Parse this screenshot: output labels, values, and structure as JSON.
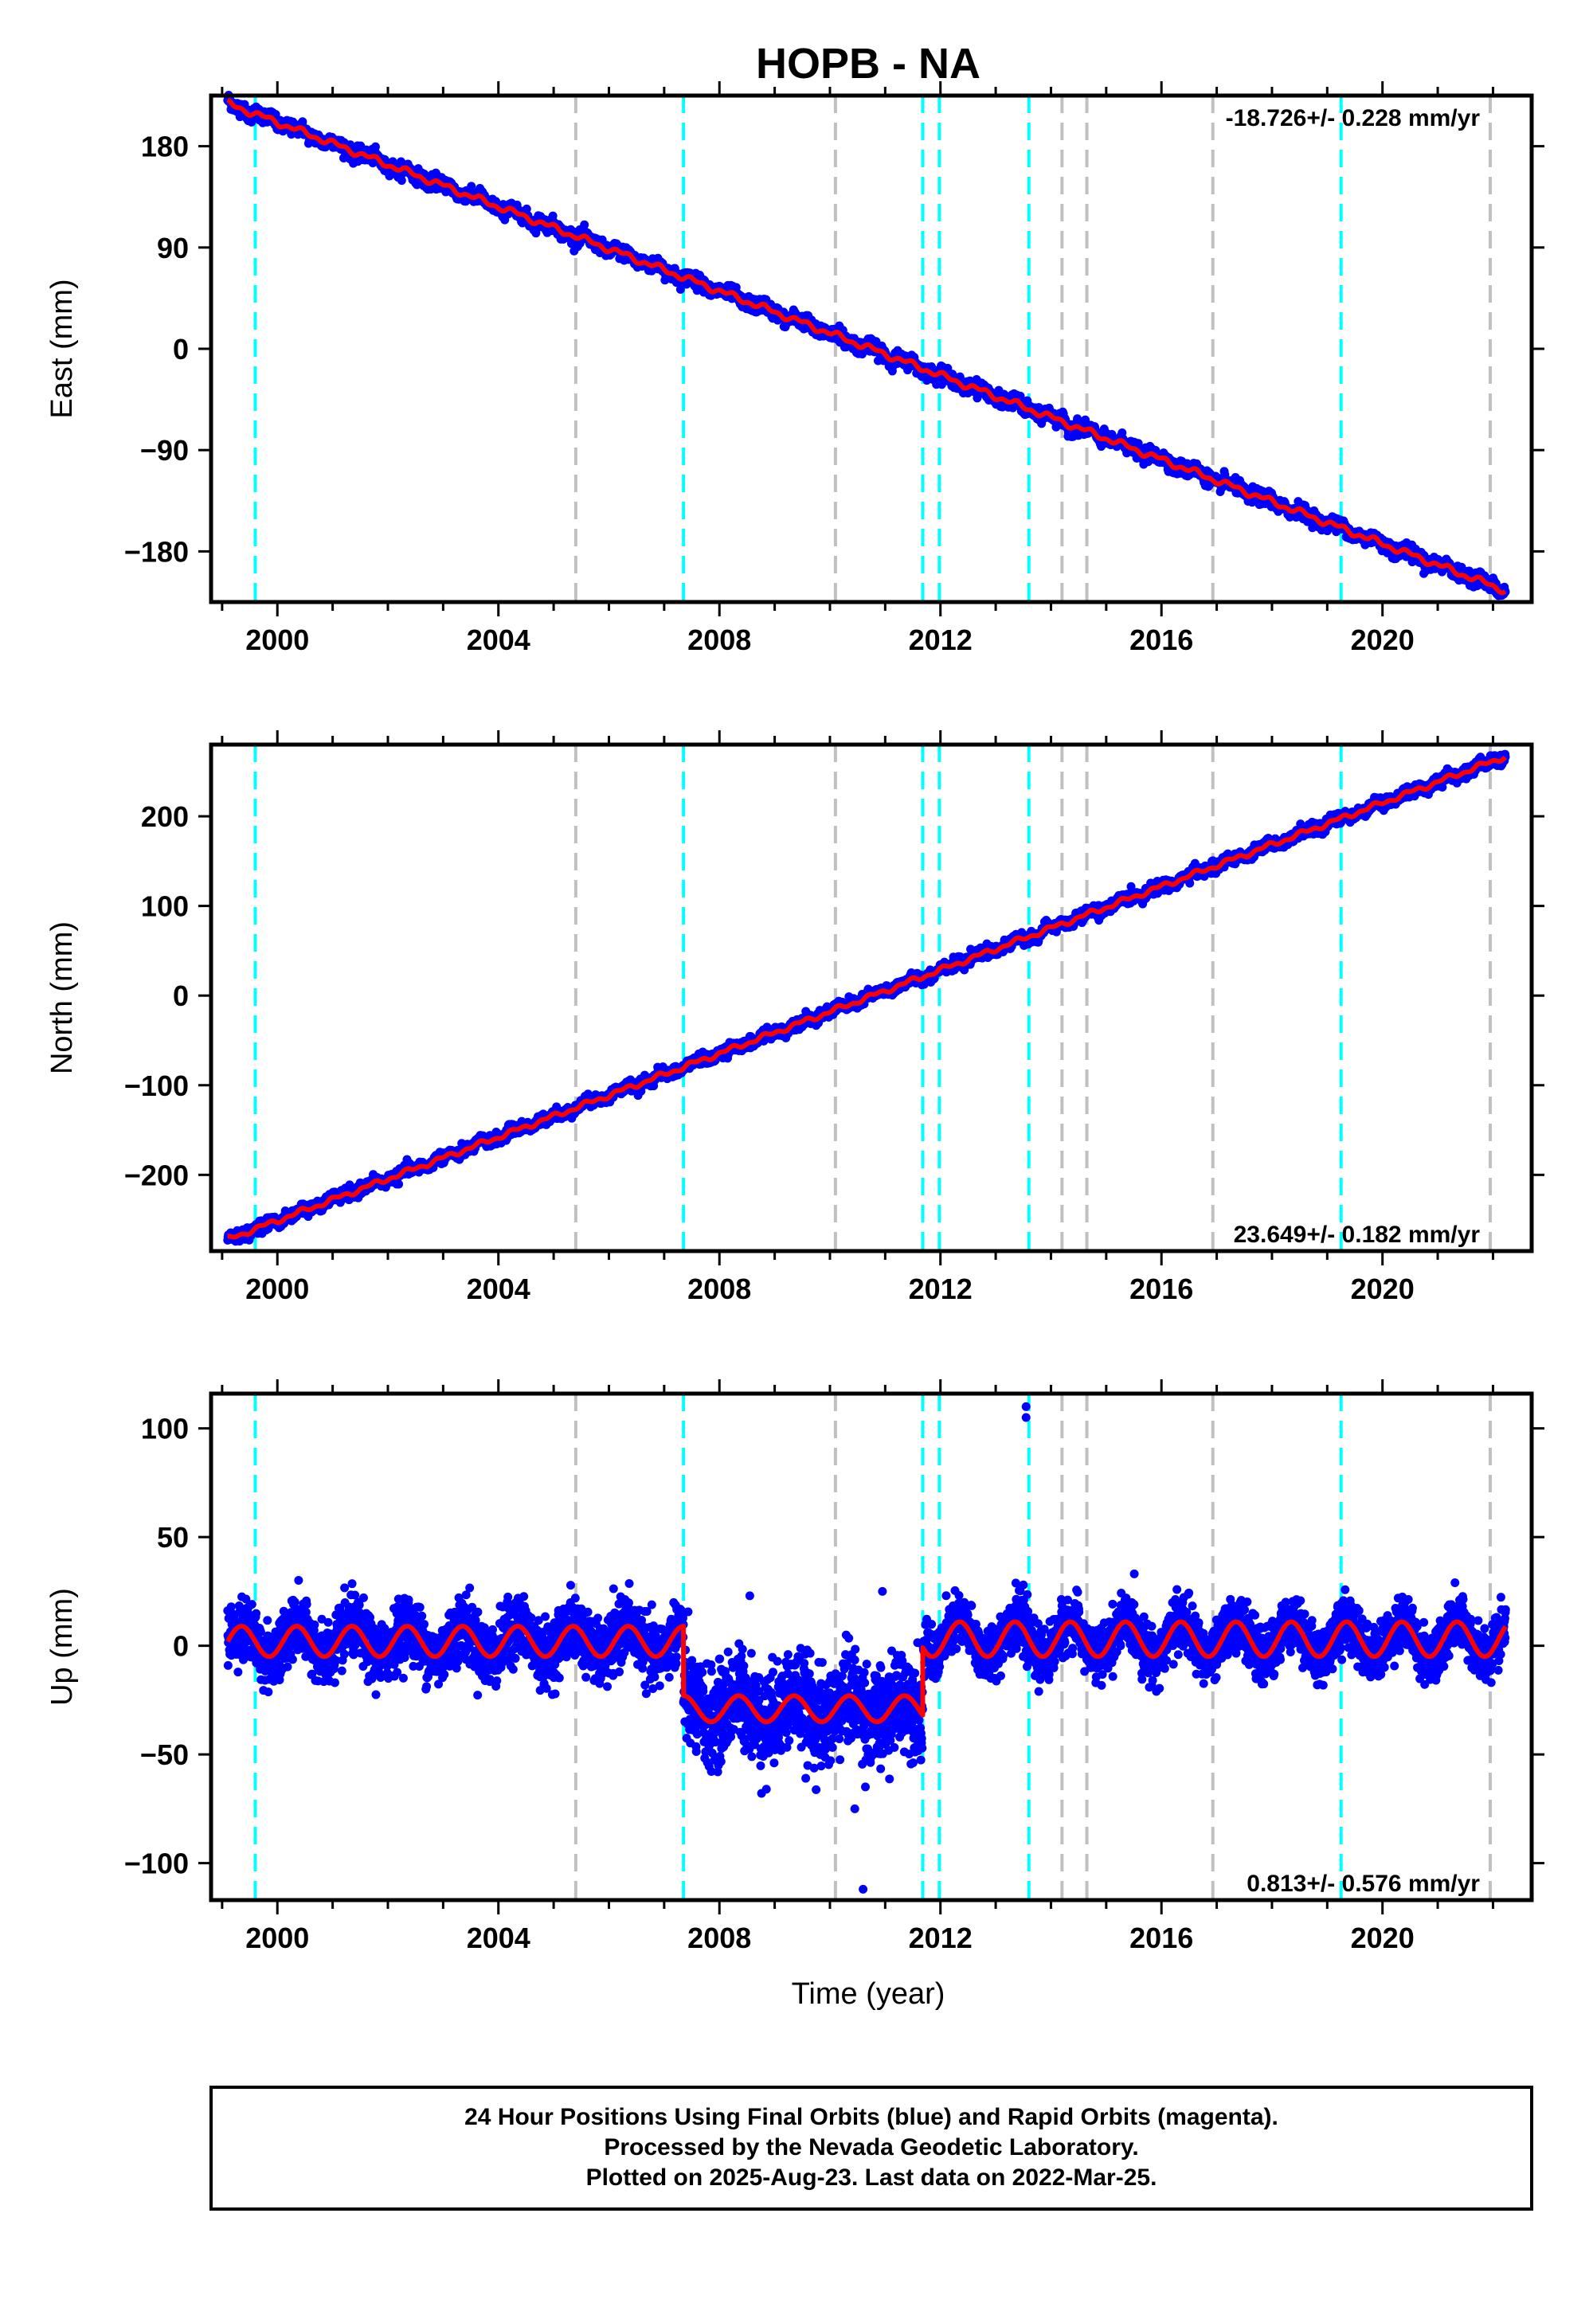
{
  "figure": {
    "title": "HOPB - NA",
    "xlabel": "Time (year)"
  },
  "colors": {
    "data_points": "#0000ff",
    "model_fit": "#ff0000",
    "equipment_change": "#00ffff",
    "earthquake": "#c0c0c0",
    "frame": "#000000"
  },
  "chart_data": [
    {
      "type": "scatter",
      "component": "east",
      "ylabel": "East (mm)",
      "rate_label": "-18.726+/- 0.228 mm/yr",
      "xlim": [
        1998.8,
        2022.7
      ],
      "ylim": [
        -225,
        225
      ],
      "xticks": [
        2000,
        2004,
        2008,
        2012,
        2016,
        2020
      ],
      "yticks": [
        180,
        90,
        0,
        -90,
        -180
      ],
      "ytick_labels": [
        "180",
        "90",
        "0",
        "−90",
        "−180"
      ],
      "series": [
        {
          "role": "daily positions",
          "start": 1999.1,
          "end": 2022.23,
          "start_value": 218,
          "end_value": -215,
          "scatter_mm": 3
        },
        {
          "role": "model fit",
          "start": 1999.1,
          "end": 2022.23,
          "start_value": 218,
          "end_value": -215
        }
      ]
    },
    {
      "type": "scatter",
      "component": "north",
      "ylabel": "North (mm)",
      "rate_label": "23.649+/- 0.182 mm/yr",
      "xlim": [
        1998.8,
        2022.7
      ],
      "ylim": [
        -285,
        280
      ],
      "xticks": [
        2000,
        2004,
        2008,
        2012,
        2016,
        2020
      ],
      "yticks": [
        200,
        100,
        0,
        -100,
        -200
      ],
      "ytick_labels": [
        "200",
        "100",
        "0",
        "−100",
        "−200"
      ],
      "series": [
        {
          "role": "daily positions",
          "start": 1999.1,
          "end": 2022.23,
          "start_value": -272,
          "end_value": 267,
          "scatter_mm": 3
        },
        {
          "role": "model fit",
          "start": 1999.1,
          "end": 2022.23,
          "start_value": -272,
          "end_value": 267
        }
      ]
    },
    {
      "type": "scatter",
      "component": "up",
      "ylabel": "Up (mm)",
      "rate_label": "0.813+/- 0.576 mm/yr",
      "xlim": [
        1998.8,
        2022.7
      ],
      "ylim": [
        -117,
        116
      ],
      "xticks": [
        2000,
        2004,
        2008,
        2012,
        2016,
        2020
      ],
      "yticks": [
        100,
        50,
        0,
        -50,
        -100
      ],
      "ytick_labels": [
        "100",
        "50",
        "0",
        "−50",
        "−100"
      ],
      "segments": [
        {
          "start": 1999.1,
          "end": 2007.35,
          "mean": 2,
          "amplitude": 7,
          "scatter_mm": 7
        },
        {
          "start": 2007.35,
          "end": 2011.68,
          "mean": -29,
          "amplitude": 6,
          "scatter_mm": 11
        },
        {
          "start": 2011.68,
          "end": 2022.23,
          "mean": 3,
          "amplitude": 8,
          "scatter_mm": 6
        }
      ],
      "outliers": [
        {
          "x": 2013.55,
          "y": 110
        },
        {
          "x": 2013.55,
          "y": 105
        },
        {
          "x": 2013.5,
          "y": 28
        },
        {
          "x": 2010.6,
          "y": -112
        },
        {
          "x": 2008.55,
          "y": 23
        },
        {
          "x": 2010.95,
          "y": 25
        },
        {
          "x": 2010.45,
          "y": -75
        },
        {
          "x": 2008.85,
          "y": -66
        }
      ]
    }
  ],
  "event_lines": {
    "equipment_changes": [
      1999.6,
      2007.35,
      2011.68,
      2011.98,
      2013.6,
      2019.25
    ],
    "earthquakes": [
      2005.4,
      2010.1,
      2014.2,
      2014.65,
      2016.93,
      2021.95
    ]
  },
  "footer": {
    "line1": "24 Hour Positions Using Final Orbits (blue) and Rapid Orbits (magenta).",
    "line2": "Processed by the Nevada Geodetic Laboratory.",
    "line3": "Plotted on 2025-Aug-23. Last data on 2022-Mar-25."
  }
}
